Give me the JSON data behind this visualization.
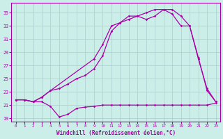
{
  "xlabel": "Windchill (Refroidissement éolien,°C)",
  "bg_color": "#cceee8",
  "grid_color": "#aacccc",
  "line_color": "#aa00aa",
  "xlim": [
    -0.5,
    23.5
  ],
  "ylim": [
    18.5,
    36.5
  ],
  "yticks": [
    19,
    21,
    23,
    25,
    27,
    29,
    31,
    33,
    35
  ],
  "xticks": [
    0,
    1,
    2,
    3,
    4,
    5,
    6,
    7,
    8,
    9,
    10,
    11,
    12,
    13,
    14,
    15,
    16,
    17,
    18,
    19,
    20,
    21,
    22,
    23
  ],
  "line1_x": [
    0,
    1,
    2,
    3,
    4,
    5,
    6,
    7,
    8,
    9,
    10,
    11,
    12,
    13,
    14,
    15,
    16,
    17,
    18,
    19,
    20,
    21,
    22,
    23
  ],
  "line1_y": [
    21.8,
    21.8,
    21.5,
    21.5,
    20.8,
    19.2,
    19.6,
    20.5,
    20.7,
    20.8,
    21.0,
    21.0,
    21.0,
    21.0,
    21.0,
    21.0,
    21.0,
    21.0,
    21.0,
    21.0,
    21.0,
    21.0,
    21.0,
    21.3
  ],
  "line2_x": [
    0,
    1,
    2,
    3,
    4,
    5,
    6,
    7,
    8,
    9,
    10,
    11,
    12,
    13,
    14,
    15,
    16,
    17,
    18,
    19,
    20,
    21,
    22,
    23
  ],
  "line2_y": [
    21.8,
    21.8,
    21.5,
    22.2,
    23.2,
    23.5,
    24.2,
    25.0,
    25.5,
    26.5,
    28.5,
    32.2,
    33.5,
    34.5,
    34.5,
    34.0,
    34.5,
    35.5,
    35.5,
    34.5,
    33.0,
    28.0,
    23.5,
    21.5
  ],
  "line3_x": [
    0,
    1,
    2,
    3,
    4,
    9,
    10,
    11,
    12,
    13,
    14,
    15,
    16,
    17,
    18,
    19,
    20,
    21,
    22,
    23
  ],
  "line3_y": [
    21.8,
    21.8,
    21.5,
    22.2,
    23.2,
    28.0,
    30.2,
    33.0,
    33.5,
    34.0,
    34.5,
    35.0,
    35.5,
    35.5,
    34.8,
    33.0,
    33.0,
    28.2,
    23.2,
    21.5
  ]
}
